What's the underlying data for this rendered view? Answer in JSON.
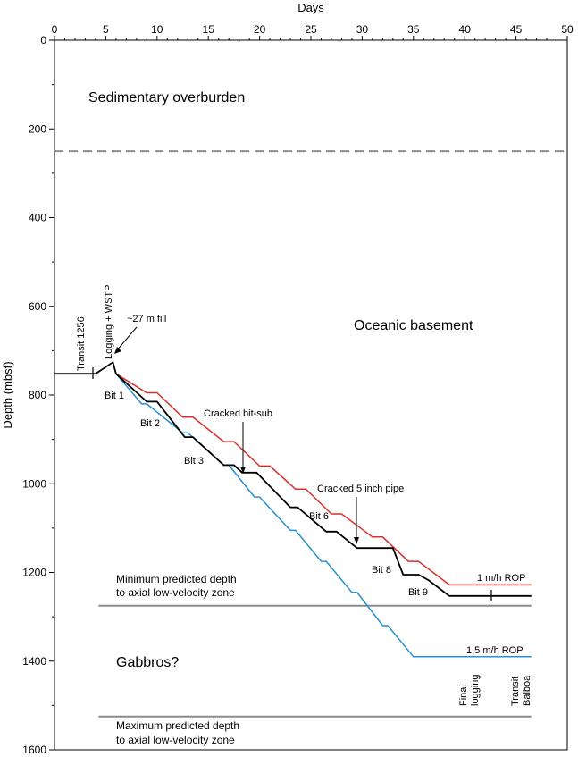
{
  "chart_data": {
    "type": "line",
    "xlabel": "Days",
    "ylabel": "Depth (mbsf)",
    "xlim": [
      0,
      50
    ],
    "ylim": [
      0,
      1600
    ],
    "y_inverted": true,
    "x_axis_position": "top",
    "x_ticks": [
      "0",
      "5",
      "10",
      "15",
      "20",
      "25",
      "30",
      "35",
      "40",
      "45",
      "50"
    ],
    "y_ticks": [
      "0",
      "200",
      "400",
      "600",
      "800",
      "1000",
      "1200",
      "1400",
      "1600"
    ],
    "colors": {
      "actual": "#000000",
      "rop1": "#d7312b",
      "rop15": "#2790cf",
      "boundary": "#8c8c8c"
    },
    "series": [
      {
        "id": "rop15",
        "name": "1.5 m/h ROP",
        "x": [
          6.0,
          8.5,
          9.0,
          12.5,
          13.0,
          16.5,
          17.0,
          19.5,
          20.0,
          23.0,
          23.5,
          26.0,
          26.5,
          29.0,
          29.5,
          32.0,
          32.5,
          35.0,
          35.5,
          38.5,
          46.5
        ],
        "y": [
          752,
          820,
          820,
          885,
          885,
          958,
          958,
          1030,
          1030,
          1105,
          1105,
          1175,
          1175,
          1245,
          1245,
          1320,
          1320,
          1390,
          1390,
          1390,
          1390
        ]
      },
      {
        "id": "rop1",
        "name": "1 m/h ROP",
        "x": [
          6.0,
          9.0,
          10.0,
          12.5,
          13.5,
          16.5,
          17.5,
          20.0,
          21.0,
          23.5,
          24.5,
          27.0,
          28.0,
          31.0,
          32.0,
          34.5,
          35.5,
          38.5,
          46.5
        ],
        "y": [
          752,
          795,
          795,
          850,
          850,
          905,
          905,
          960,
          960,
          1012,
          1012,
          1068,
          1068,
          1120,
          1120,
          1175,
          1175,
          1228,
          1228
        ]
      },
      {
        "id": "actual",
        "name": "",
        "x": [
          0.0,
          4.0,
          5.7,
          6.0,
          9.0,
          10.0,
          12.7,
          13.5,
          16.5,
          17.5,
          18.3,
          19.7,
          23.0,
          23.7,
          26.5,
          27.5,
          29.5,
          31.5,
          33.0,
          34.0,
          35.5,
          36.5,
          38.5,
          46.5
        ],
        "y": [
          752,
          752,
          726,
          752,
          815,
          815,
          895,
          895,
          958,
          958,
          975,
          975,
          1053,
          1053,
          1108,
          1108,
          1145,
          1145,
          1145,
          1205,
          1205,
          1218,
          1253,
          1253
        ]
      }
    ],
    "horizontal_lines": [
      {
        "id": "sediment-boundary",
        "y": 250,
        "style": "dashed"
      },
      {
        "id": "min-lvz",
        "y": 1275,
        "style": "solid"
      },
      {
        "id": "max-lvz",
        "y": 1525,
        "style": "solid"
      }
    ],
    "series_labels": {
      "rop1": "1 m/h ROP",
      "rop15": "1.5 m/h ROP"
    },
    "zones": {
      "sediment": "Sedimentary overburden",
      "basement": "Oceanic basement",
      "gabbros": "Gabbros?"
    },
    "predicted_depth": {
      "min_line1": "Minimum predicted depth",
      "min_line2": "to axial low-velocity zone",
      "max_line1": "Maximum predicted depth",
      "max_line2": "to axial low-velocity zone"
    },
    "annotations": {
      "transit_1256": "Transit 1256",
      "logging_wstp": "Logging + WSTP",
      "fill": "~27 m fill",
      "cracked_bit_sub": "Cracked bit-sub",
      "cracked_pipe": "Cracked 5 inch pipe",
      "final_logging_1": "Final",
      "final_logging_2": "logging",
      "transit_balboa_1": "Transit",
      "transit_balboa_2": "Balboa"
    },
    "bits": [
      "Bit 1",
      "Bit 2",
      "Bit 3",
      "Bit 6",
      "Bit 8",
      "Bit 9"
    ]
  }
}
